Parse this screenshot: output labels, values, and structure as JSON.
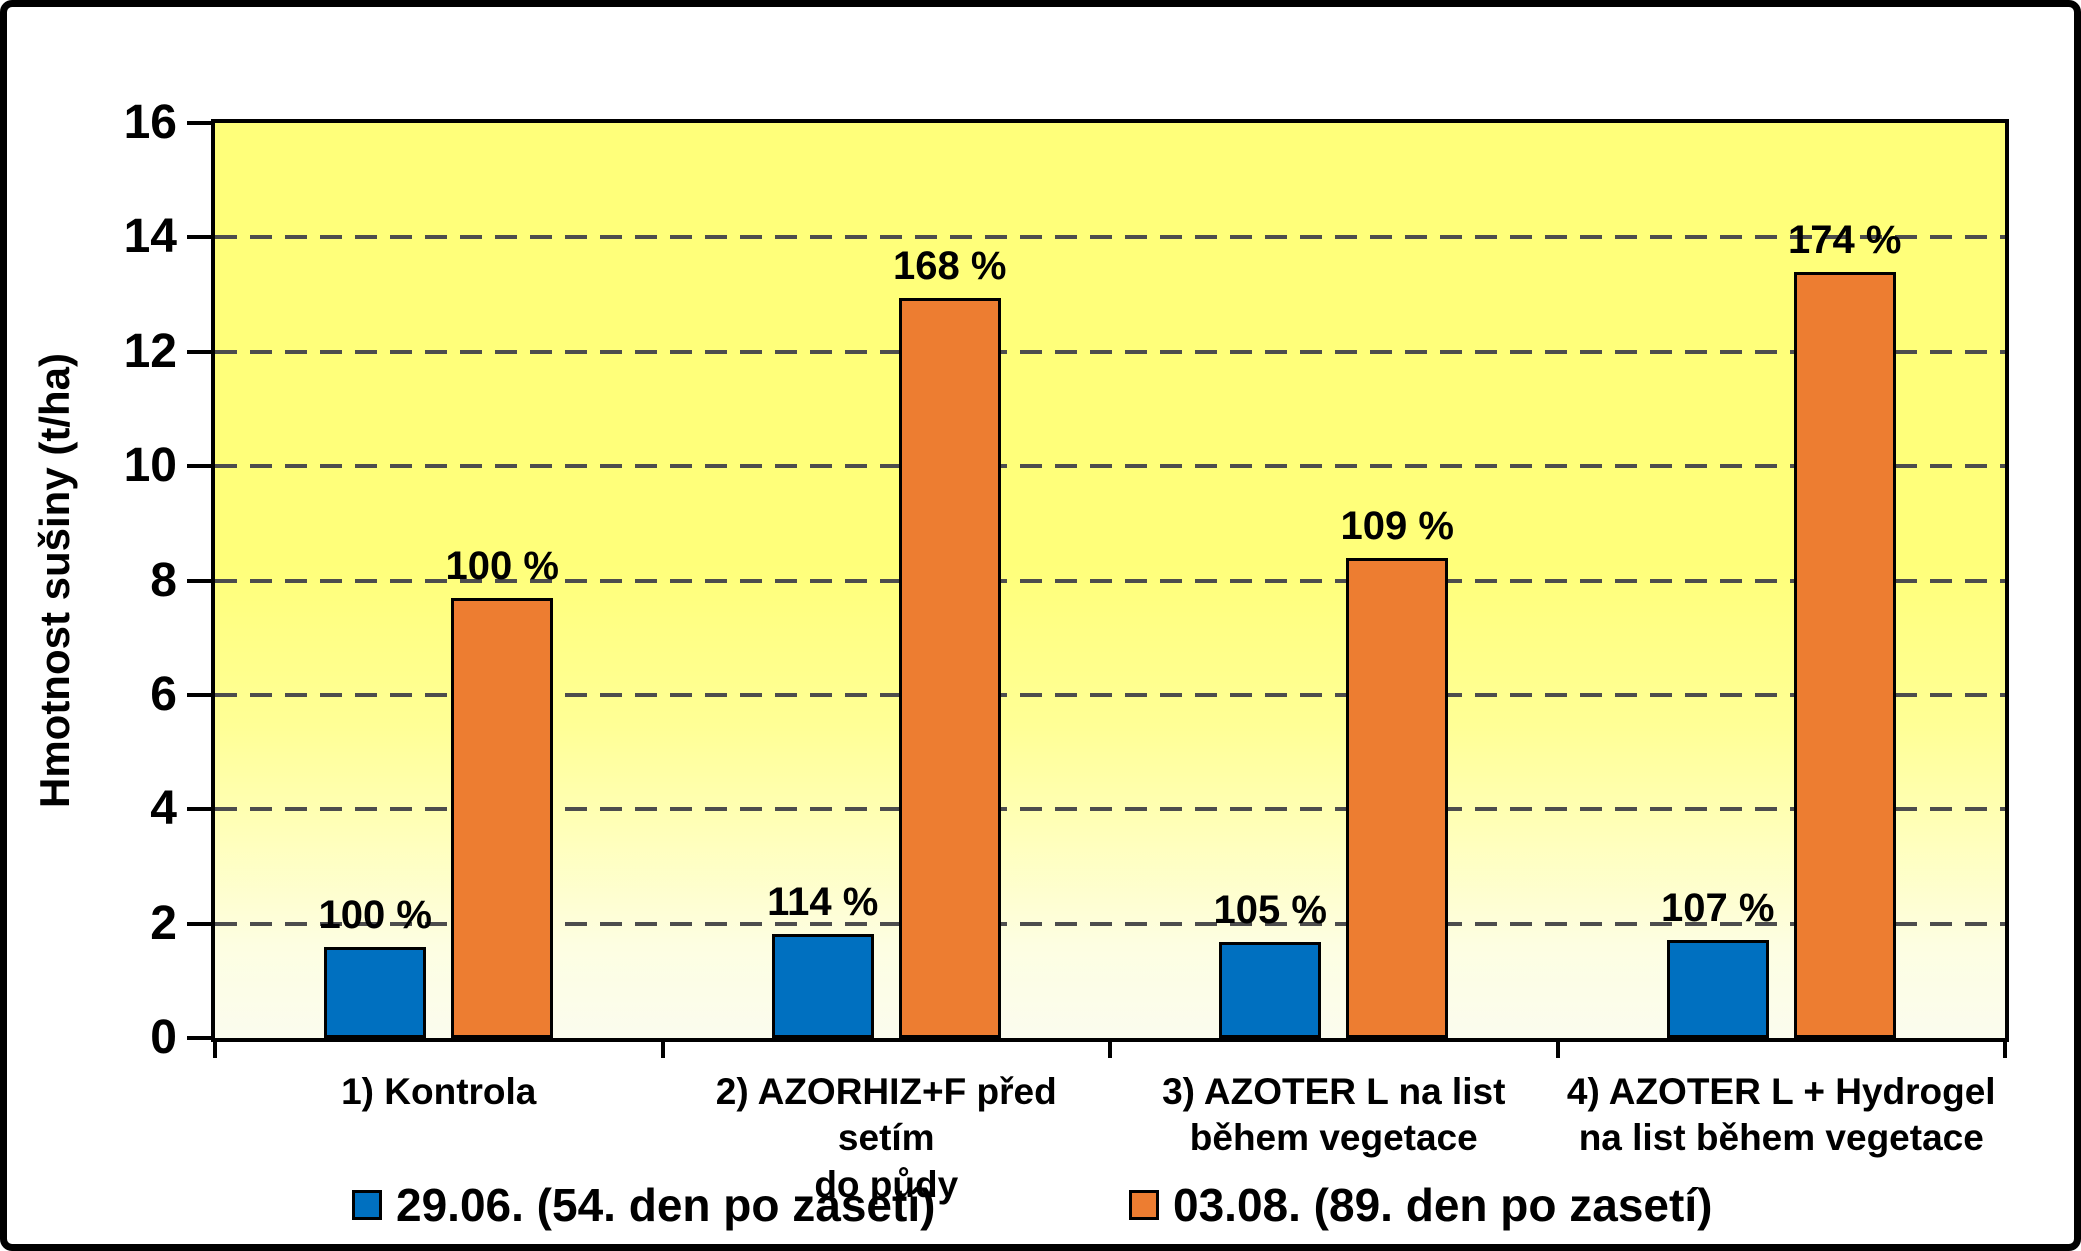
{
  "chart_data": {
    "type": "bar",
    "title": "",
    "ylabel": "Hmotnost sušiny (t/ha)",
    "xlabel": "",
    "ylim": [
      0,
      16
    ],
    "yticks": [
      0,
      2,
      4,
      6,
      8,
      10,
      12,
      14,
      16
    ],
    "grid": "horizontal-dashed",
    "legend_position": "bottom",
    "categories": [
      "1) Kontrola",
      "2) AZORHIZ+F před setím\ndo půdy",
      "3) AZOTER L na list\nběhem vegetace",
      "4) AZOTER L + Hydrogel\nna list během vegetace"
    ],
    "series": [
      {
        "name": "29.06. (54. den po zasetí)",
        "color": "#0070C0",
        "values": [
          1.6,
          1.82,
          1.68,
          1.71
        ],
        "point_labels": [
          "100 %",
          "114 %",
          "105 %",
          "107 %"
        ]
      },
      {
        "name": "03.08. (89. den po zasetí)",
        "color": "#ED7D31",
        "values": [
          7.7,
          12.94,
          8.39,
          13.4
        ],
        "point_labels": [
          "100 %",
          "168 %",
          "109 %",
          "174 %"
        ]
      }
    ],
    "plot_background": {
      "top": "#FFFF7A",
      "bottom": "#FBFCEE"
    },
    "gridline_color": "#4D4D4D",
    "axis_color": "#000000"
  }
}
